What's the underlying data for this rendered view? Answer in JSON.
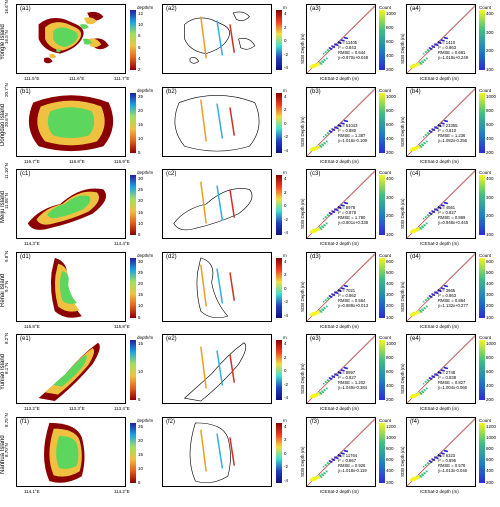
{
  "rows": [
    {
      "island": "Yongle Island",
      "a": "(a1)",
      "b": "(a2)",
      "c": "(a3)",
      "d": "(a4)",
      "lat": [
        "16.6°N",
        "16.5°N"
      ],
      "lon": [
        "111.5°E",
        "111.6°E",
        "111.7°E"
      ],
      "cb1": {
        "title": "depth/m",
        "ticks": [
          "12",
          "10",
          "8",
          "6",
          "4",
          "2"
        ]
      },
      "cb2": {
        "title": "m",
        "ticks": [
          "4",
          "2",
          "0",
          "-2",
          "-4"
        ]
      },
      "c_stats": [
        "N = 11405",
        "r² = 0.843",
        "RMSE = 0.644",
        "y=0.970x+0.048"
      ],
      "d_stats": [
        "N = 1410",
        "r² = 0.863",
        "RMSE = 0.681",
        "y=1.018x+0.249"
      ],
      "c_cb": [
        "1000",
        "800",
        "600",
        "400",
        "200"
      ],
      "d_cb": [
        "400",
        "300",
        "200",
        "100"
      ]
    },
    {
      "island": "Dongdao Island",
      "a": "(b1)",
      "b": "(b2)",
      "c": "(b3)",
      "d": "(b4)",
      "lat": [
        "20.7°N",
        "20.6°N"
      ],
      "lon": [
        "116.7°E",
        "116.8°E",
        "116.9°E"
      ],
      "cb1": {
        "title": "depth/m",
        "ticks": [
          "25",
          "20",
          "15",
          "10",
          "5"
        ]
      },
      "cb2": {
        "title": "m",
        "ticks": [
          "4",
          "2",
          "0",
          "-2",
          "-4"
        ]
      },
      "c_stats": [
        "N = 61043",
        "r² = 0.880",
        "RMSE = 1.387",
        "y=1.016x-0.109"
      ],
      "d_stats": [
        "N = 23355",
        "r² = 0.810",
        "RMSE = 1.236",
        "y=1.082x-0.256"
      ],
      "c_cb": [
        "1000",
        "800",
        "600",
        "400",
        "200"
      ],
      "d_cb": [
        "1000",
        "800",
        "600",
        "400",
        "200"
      ]
    },
    {
      "island": "Meiju Island",
      "a": "(c1)",
      "b": "(c2)",
      "c": "(c3)",
      "d": "(c4)",
      "lat": [
        "11.10°N",
        "11.05°N"
      ],
      "lon": [
        "114.3°E",
        "114.4°E"
      ],
      "cb1": {
        "title": "depth/m",
        "ticks": [
          "30",
          "25",
          "20",
          "15",
          "10",
          "5"
        ]
      },
      "cb2": {
        "title": "m",
        "ticks": [
          "4",
          "2",
          "0",
          "-2",
          "-4"
        ]
      },
      "c_stats": [
        "N = 6978",
        "r² = 0.878",
        "RMSE = 1.780",
        "y=0.801x+0.338"
      ],
      "d_stats": [
        "N = 4561",
        "r² = 0.827",
        "RMSE = 0.869",
        "y=0.948x+0.445"
      ],
      "c_cb": [
        "400",
        "300",
        "200",
        "100"
      ],
      "d_cb": [
        "400",
        "300",
        "200",
        "100"
      ]
    },
    {
      "island": "Renai Island",
      "a": "(d1)",
      "b": "(d2)",
      "c": "(d3)",
      "d": "(d4)",
      "lat": [
        "9.8°N",
        "9.7°N"
      ],
      "lon": [
        "115.8°E",
        "115.8°E"
      ],
      "cb1": {
        "title": "depth/m",
        "ticks": [
          "30",
          "25",
          "20",
          "15",
          "10",
          "5"
        ]
      },
      "cb2": {
        "title": "m",
        "ticks": [
          "4",
          "2",
          "0",
          "-2",
          "-4"
        ]
      },
      "c_stats": [
        "N = 7021",
        "r² = 0.862",
        "RMSE = 0.564",
        "y=0.989x+0.013"
      ],
      "d_stats": [
        "N = 3665",
        "r² = 0.863",
        "RMSE = 0.864",
        "y=1.132x+0.277"
      ],
      "c_cb": [
        "600",
        "500",
        "400",
        "300",
        "200",
        "100"
      ],
      "d_cb": [
        "600",
        "500",
        "400",
        "300",
        "200",
        "100"
      ]
    },
    {
      "island": "Yuniao Island",
      "a": "(e1)",
      "b": "(e2)",
      "c": "(e3)",
      "d": "(e4)",
      "lat": [
        "8.2°N",
        "8.1°N"
      ],
      "lon": [
        "113.2°E",
        "113.3°E",
        "113.4°E"
      ],
      "cb1": {
        "title": "depth/m",
        "ticks": [
          "15",
          "10",
          "5"
        ]
      },
      "cb2": {
        "title": "m",
        "ticks": [
          "4",
          "2",
          "0",
          "-2",
          "-4"
        ]
      },
      "c_stats": [
        "N = 8997",
        "r² = 0.827",
        "RMSE = 1.202",
        "y=1.049x-0.384"
      ],
      "d_stats": [
        "N = 2748",
        "r² = 0.838",
        "RMSE = 0.827",
        "y=1.004x-0.066"
      ],
      "c_cb": [
        "1000",
        "800",
        "600",
        "400",
        "200"
      ],
      "d_cb": [
        "1000",
        "800",
        "600",
        "400",
        "200"
      ]
    },
    {
      "island": "Nanhua Island",
      "a": "(f1)",
      "b": "(f2)",
      "c": "(f3)",
      "d": "(f4)",
      "lat": [
        "8.75°N",
        "8.70°N"
      ],
      "lon": [
        "114.1°E",
        "114.2°E"
      ],
      "cb1": {
        "title": "depth/m",
        "ticks": [
          "25",
          "20",
          "15",
          "10",
          "5"
        ]
      },
      "cb2": {
        "title": "m",
        "ticks": [
          "4",
          "2",
          "0",
          "-2",
          "-4"
        ]
      },
      "c_stats": [
        "N = 11764",
        "r² = 0.867",
        "RMSE = 0.926",
        "y=1.018x-0.119"
      ],
      "d_stats": [
        "N = 6323",
        "r² = 0.895",
        "RMSE = 0.578",
        "y=1.013x-0.046"
      ],
      "c_cb": [
        "1200",
        "1000",
        "800",
        "600",
        "400",
        "200"
      ],
      "d_cb": [
        "1200",
        "1000",
        "800",
        "600",
        "400",
        "200"
      ]
    }
  ],
  "scatter_axes": {
    "xlabel": "ICESat-2 depth (m)",
    "ylabel": "SDB Depth (m)",
    "xticks": [
      "0",
      "10",
      "20",
      "30"
    ],
    "yticks": [
      "30",
      "20",
      "10",
      "0"
    ],
    "count_title": "Count"
  },
  "colors": {
    "depth_low": "#8b0000",
    "depth_mid": "#f0c040",
    "depth_high": "#5cd65c",
    "count_low": "#2b2bd6",
    "count_high": "#f5f520",
    "line_fit": "#d62728"
  }
}
